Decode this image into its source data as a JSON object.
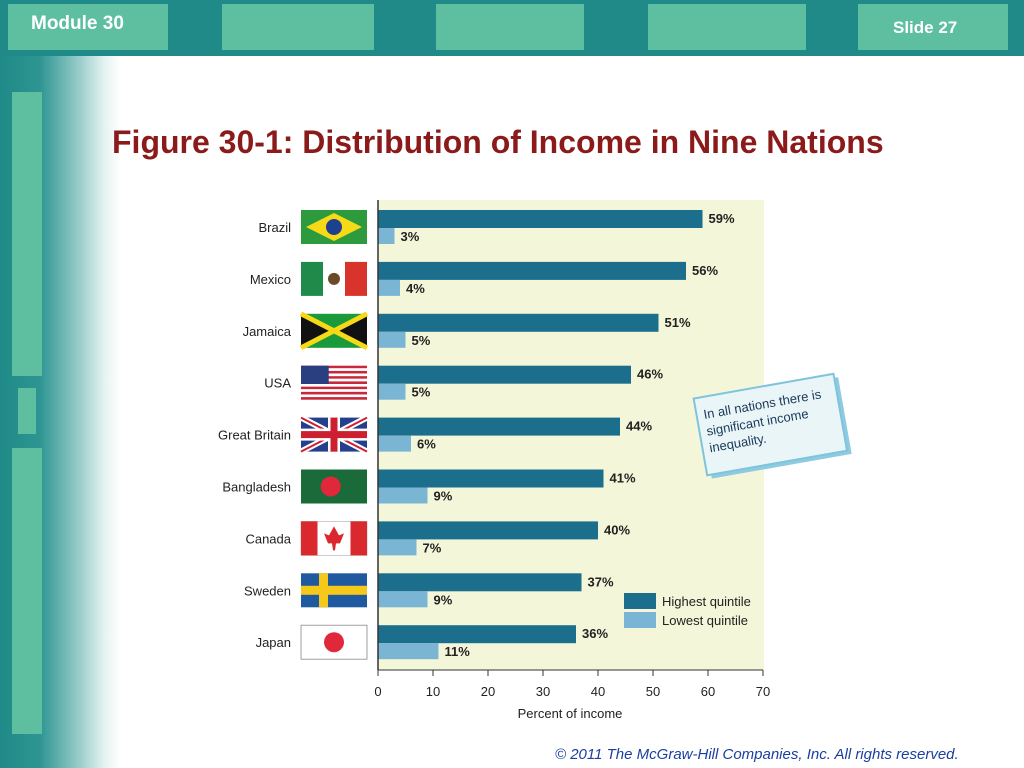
{
  "header": {
    "module_label": "Module 30",
    "slide_label": "Slide 27"
  },
  "title": "Figure 30-1: Distribution of Income in Nine Nations",
  "footer": {
    "copyright": "© 2011 The McGraw-Hill Companies, Inc. All rights reserved."
  },
  "colors": {
    "theme_teal": "#1f8a87",
    "tab_green": "#5dbfa0",
    "title_red": "#8b1a1a",
    "plot_background": "#f4f6d9",
    "highest_bar": "#1c6f8c",
    "lowest_bar": "#7ab5d4",
    "callout_fill": "#e9f5f7"
  },
  "callout": {
    "lines": [
      "In all nations there is",
      "significant income",
      "inequality."
    ]
  },
  "chart_data": {
    "type": "bar",
    "orientation": "horizontal",
    "categories": [
      "Brazil",
      "Mexico",
      "Jamaica",
      "USA",
      "Great Britain",
      "Bangladesh",
      "Canada",
      "Sweden",
      "Japan"
    ],
    "flag_icons": [
      "brazil-flag-icon",
      "mexico-flag-icon",
      "jamaica-flag-icon",
      "usa-flag-icon",
      "great-britain-flag-icon",
      "bangladesh-flag-icon",
      "canada-flag-icon",
      "sweden-flag-icon",
      "japan-flag-icon"
    ],
    "series": [
      {
        "name": "Highest quintile",
        "values": [
          59,
          56,
          51,
          46,
          44,
          41,
          40,
          37,
          36
        ],
        "labels": [
          "59%",
          "56%",
          "51%",
          "46%",
          "44%",
          "41%",
          "40%",
          "37%",
          "36%"
        ]
      },
      {
        "name": "Lowest quintile",
        "values": [
          3,
          4,
          5,
          5,
          6,
          9,
          7,
          9,
          11
        ],
        "labels": [
          "3%",
          "4%",
          "5%",
          "5%",
          "6%",
          "9%",
          "7%",
          "9%",
          "11%"
        ]
      }
    ],
    "xlabel": "Percent of income",
    "xlim": [
      0,
      70
    ],
    "xticks": [
      "0",
      "10",
      "20",
      "30",
      "40",
      "50",
      "60",
      "70"
    ],
    "legend_position": "bottom-right",
    "grid": false
  }
}
